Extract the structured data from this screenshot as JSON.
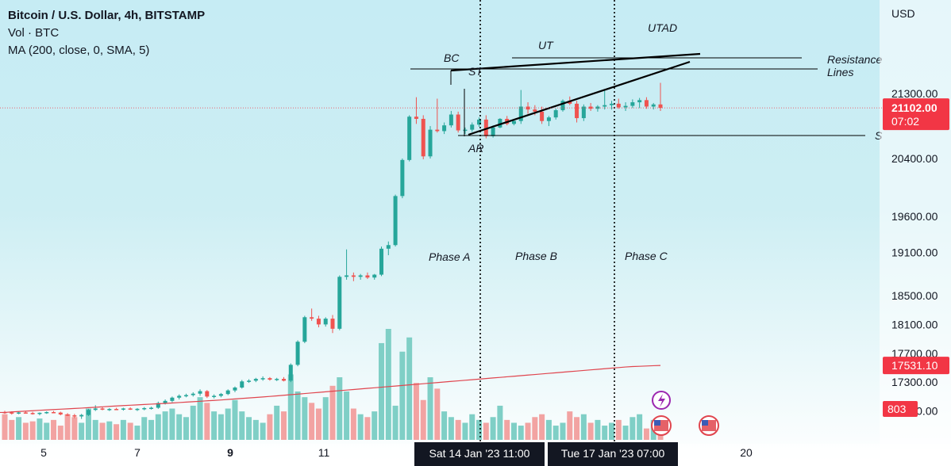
{
  "header": {
    "title": "Bitcoin / U.S. Dollar, 4h, BITSTAMP",
    "volume_label": "Vol · BTC",
    "ma_label": "MA (200, close, 0, SMA, 5)"
  },
  "colors": {
    "up": "#26a69a",
    "down": "#ef5350",
    "vol_up": "#7fcfc6",
    "vol_down": "#f2a3a2",
    "ma": "#e0454e",
    "price_badge": "#f23645",
    "axis_label_bg": "#131722"
  },
  "chart_data": {
    "type": "candlestick",
    "y_axis_label": "USD",
    "ylim": [
      16500,
      22400
    ],
    "y_ticks": [
      16900,
      17300,
      17700,
      18100,
      18500,
      19100,
      19600,
      20400,
      21300
    ],
    "x_ticks": [
      "5",
      "7",
      "9",
      "11",
      "20"
    ],
    "x_time_labels": [
      "Sat 14 Jan '23  11:00",
      "Tue 17 Jan '23  07:00"
    ],
    "last_price": "21102.00",
    "countdown": "07:02",
    "ma_value": "17531.10",
    "last_volume": "803",
    "candles": [
      [
        16886,
        16902,
        16860,
        16880
      ],
      [
        16880,
        16895,
        16850,
        16868
      ],
      [
        16868,
        16890,
        16855,
        16880
      ],
      [
        16880,
        16900,
        16865,
        16872
      ],
      [
        16872,
        16888,
        16850,
        16860
      ],
      [
        16860,
        16880,
        16840,
        16875
      ],
      [
        16875,
        16895,
        16860,
        16885
      ],
      [
        16885,
        16900,
        16870,
        16878
      ],
      [
        16878,
        16890,
        16840,
        16852
      ],
      [
        16852,
        16870,
        16830,
        16840
      ],
      [
        16840,
        16860,
        16800,
        16825
      ],
      [
        16825,
        16860,
        16790,
        16845
      ],
      [
        16845,
        16930,
        16830,
        16915
      ],
      [
        16915,
        16980,
        16900,
        16935
      ],
      [
        16935,
        16960,
        16910,
        16920
      ],
      [
        16920,
        16940,
        16900,
        16928
      ],
      [
        16928,
        16945,
        16915,
        16925
      ],
      [
        16925,
        16945,
        16905,
        16935
      ],
      [
        16935,
        16950,
        16915,
        16922
      ],
      [
        16922,
        16940,
        16900,
        16930
      ],
      [
        16930,
        16955,
        16910,
        16940
      ],
      [
        16940,
        16960,
        16920,
        16945
      ],
      [
        16945,
        17030,
        16930,
        17010
      ],
      [
        17010,
        17060,
        16990,
        17040
      ],
      [
        17040,
        17100,
        17020,
        17085
      ],
      [
        17085,
        17130,
        17060,
        17110
      ],
      [
        17110,
        17140,
        17090,
        17120
      ],
      [
        17120,
        17160,
        17100,
        17140
      ],
      [
        17140,
        17200,
        17110,
        17175
      ],
      [
        17175,
        17190,
        17080,
        17100
      ],
      [
        17100,
        17130,
        17075,
        17110
      ],
      [
        17110,
        17150,
        17090,
        17135
      ],
      [
        17135,
        17200,
        17120,
        17185
      ],
      [
        17185,
        17240,
        17160,
        17225
      ],
      [
        17225,
        17330,
        17210,
        17310
      ],
      [
        17310,
        17340,
        17290,
        17320
      ],
      [
        17320,
        17360,
        17300,
        17345
      ],
      [
        17345,
        17380,
        17320,
        17355
      ],
      [
        17355,
        17370,
        17320,
        17335
      ],
      [
        17335,
        17360,
        17315,
        17345
      ],
      [
        17345,
        17370,
        17310,
        17320
      ],
      [
        17320,
        17560,
        17300,
        17540
      ],
      [
        17540,
        17880,
        17520,
        17860
      ],
      [
        17860,
        18220,
        17840,
        18200
      ],
      [
        18200,
        18320,
        18150,
        18180
      ],
      [
        18180,
        18220,
        18060,
        18100
      ],
      [
        18100,
        18200,
        18070,
        18180
      ],
      [
        18180,
        18230,
        17980,
        18040
      ],
      [
        18040,
        18780,
        18020,
        18760
      ],
      [
        18760,
        19140,
        18720,
        18780
      ],
      [
        18780,
        18820,
        18700,
        18760
      ],
      [
        18760,
        18800,
        18720,
        18780
      ],
      [
        18780,
        18820,
        18730,
        18750
      ],
      [
        18750,
        18800,
        18720,
        18790
      ],
      [
        18790,
        19180,
        18770,
        19150
      ],
      [
        19150,
        19250,
        19060,
        19200
      ],
      [
        19200,
        19900,
        19180,
        19880
      ],
      [
        19880,
        20400,
        19850,
        20380
      ],
      [
        20380,
        21000,
        20360,
        20980
      ],
      [
        20980,
        21250,
        20880,
        20950
      ],
      [
        20950,
        21000,
        20390,
        20430
      ],
      [
        20430,
        20850,
        20400,
        20800
      ],
      [
        20800,
        21230,
        20760,
        20780
      ],
      [
        20780,
        20900,
        20740,
        20860
      ],
      [
        20860,
        21060,
        20830,
        21010
      ],
      [
        21010,
        21050,
        20760,
        20790
      ],
      [
        20790,
        20830,
        20740,
        20800
      ],
      [
        20800,
        20900,
        20770,
        20870
      ],
      [
        20870,
        20970,
        20840,
        20940
      ],
      [
        20940,
        21000,
        20680,
        20710
      ],
      [
        20710,
        20860,
        20690,
        20830
      ],
      [
        20830,
        20960,
        20820,
        20950
      ],
      [
        20950,
        20990,
        20860,
        20880
      ],
      [
        20880,
        20930,
        20860,
        20920
      ],
      [
        20920,
        21350,
        20880,
        21120
      ],
      [
        21120,
        21180,
        21020,
        21080
      ],
      [
        21080,
        21140,
        21000,
        21050
      ],
      [
        21050,
        21120,
        20880,
        20920
      ],
      [
        20920,
        20990,
        20850,
        20970
      ],
      [
        20970,
        21090,
        20940,
        21070
      ],
      [
        21070,
        21220,
        21050,
        21200
      ],
      [
        21200,
        21260,
        21140,
        21160
      ],
      [
        21160,
        21200,
        20900,
        20960
      ],
      [
        20960,
        21150,
        20920,
        21120
      ],
      [
        21120,
        21170,
        21060,
        21090
      ],
      [
        21090,
        21140,
        21050,
        21120
      ],
      [
        21120,
        21360,
        21080,
        21140
      ],
      [
        21140,
        21200,
        21080,
        21160
      ],
      [
        21160,
        21230,
        21090,
        21110
      ],
      [
        21110,
        21180,
        21060,
        21130
      ],
      [
        21130,
        21220,
        21100,
        21180
      ],
      [
        21180,
        21240,
        21100,
        21210
      ],
      [
        21210,
        21250,
        21090,
        21120
      ],
      [
        21120,
        21170,
        21080,
        21150
      ],
      [
        21150,
        21450,
        21060,
        21102
      ]
    ],
    "volumes": [
      18,
      14,
      16,
      12,
      13,
      15,
      12,
      14,
      10,
      18,
      16,
      12,
      22,
      14,
      12,
      13,
      11,
      14,
      12,
      10,
      16,
      14,
      18,
      20,
      22,
      18,
      16,
      24,
      30,
      26,
      20,
      18,
      22,
      28,
      20,
      16,
      14,
      12,
      18,
      24,
      20,
      46,
      34,
      30,
      26,
      22,
      30,
      38,
      44,
      34,
      22,
      18,
      16,
      20,
      68,
      78,
      24,
      62,
      72,
      40,
      28,
      44,
      36,
      20,
      16,
      14,
      12,
      18,
      14,
      12,
      16,
      24,
      14,
      12,
      10,
      12,
      16,
      18,
      14,
      10,
      12,
      20,
      16,
      18,
      12,
      14,
      10,
      12,
      14,
      10,
      16,
      18,
      8,
      14,
      16
    ],
    "ma_series": [
      16880,
      16887,
      16893,
      16898,
      16904,
      16910,
      16915,
      16920,
      16925,
      16930,
      16935,
      16940,
      16946,
      16952,
      16958,
      16964,
      16970,
      16975,
      16980,
      16985,
      16990,
      16995,
      17000,
      17005,
      17011,
      17017,
      17023,
      17029,
      17035,
      17041,
      17047,
      17053,
      17060,
      17067,
      17074,
      17081,
      17088,
      17095,
      17102,
      17110,
      17118,
      17126,
      17134,
      17142,
      17150,
      17158,
      17166,
      17174,
      17182,
      17190,
      17198,
      17206,
      17214,
      17222,
      17230,
      17238,
      17246,
      17254,
      17262,
      17270,
      17278,
      17286,
      17294,
      17302,
      17310,
      17318,
      17326,
      17334,
      17342,
      17350,
      17358,
      17366,
      17374,
      17382,
      17390,
      17398,
      17406,
      17414,
      17422,
      17430,
      17438,
      17446,
      17454,
      17462,
      17470,
      17478,
      17486,
      17494,
      17502,
      17510,
      17516,
      17520,
      17524,
      17528,
      17531
    ],
    "annotations": {
      "bc": "BC",
      "st": "ST",
      "ar": "AR",
      "ut": "UT",
      "utad": "UTAD",
      "resistance_line1": "Resistance",
      "resistance_line2": "Lines",
      "support_cut": "S",
      "phase_a": "Phase A",
      "phase_b": "Phase B",
      "phase_c": "Phase C"
    }
  }
}
